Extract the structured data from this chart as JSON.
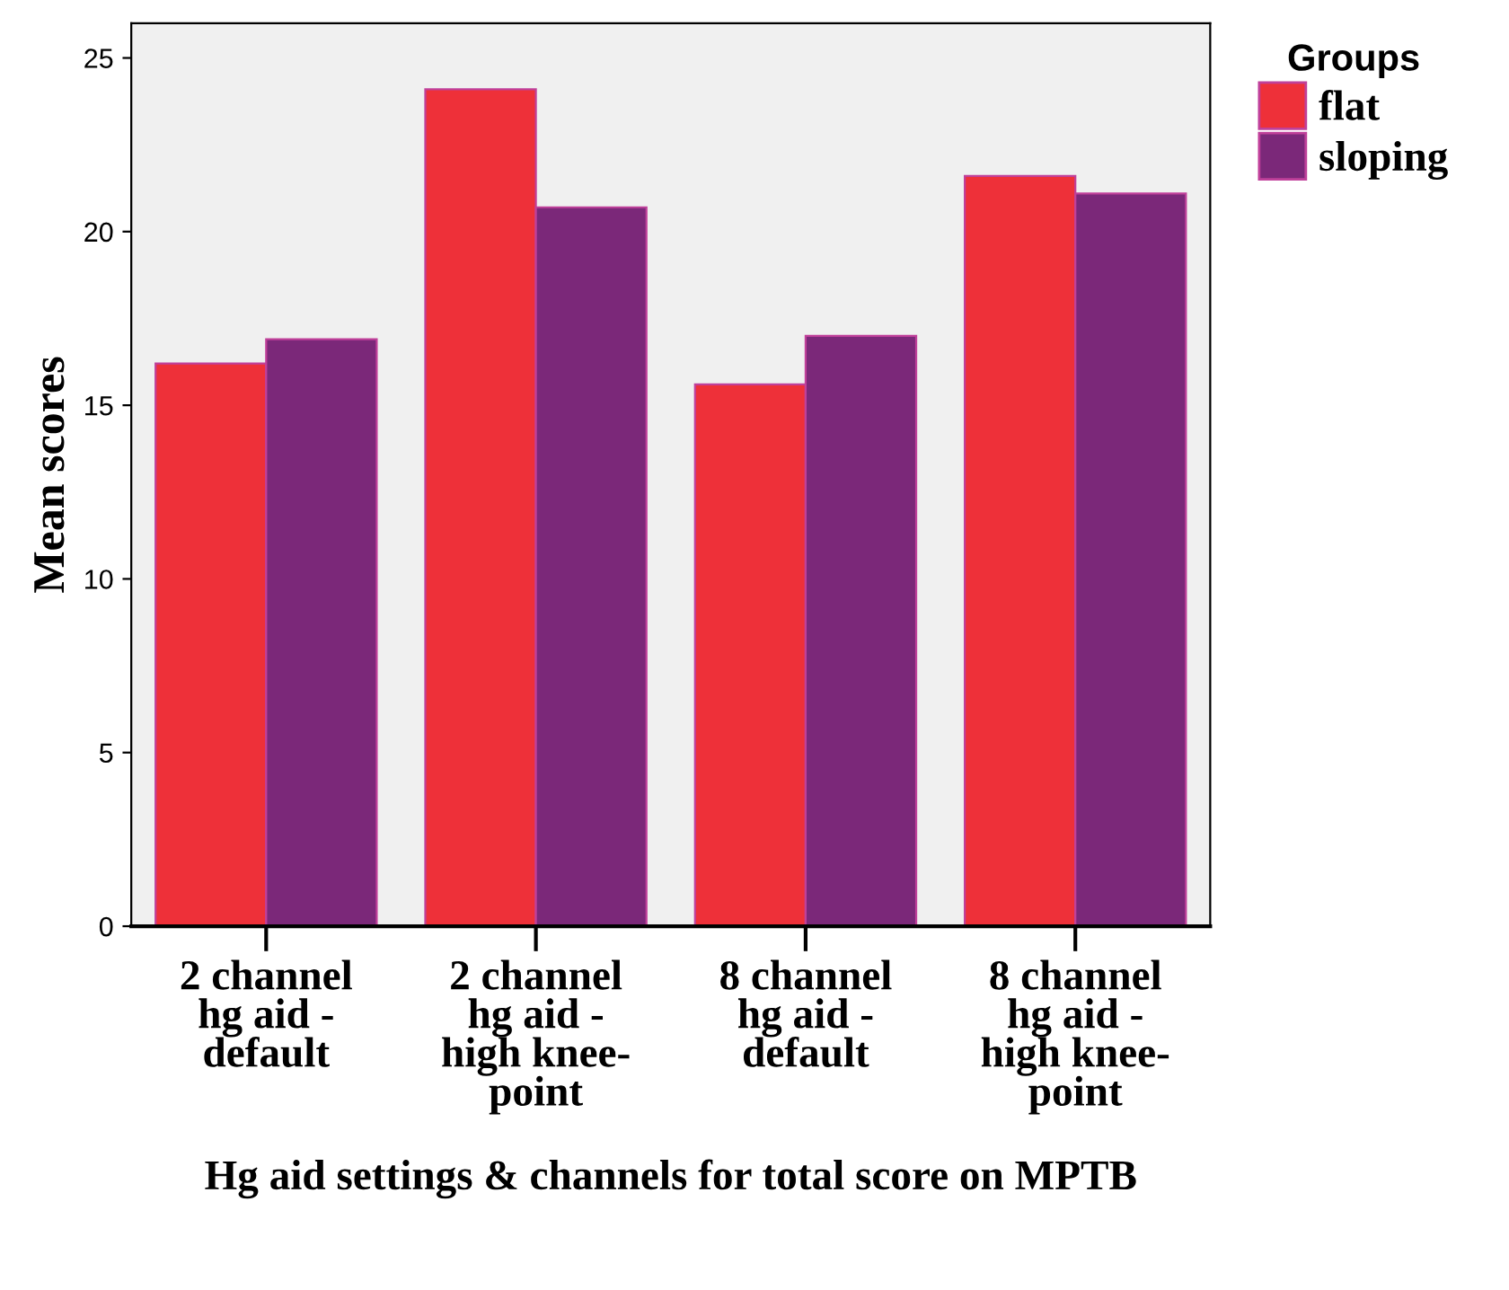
{
  "chart_data": {
    "type": "bar",
    "xlabel": "Hg aid settings & channels for total score on MPTB",
    "ylabel": "Mean scores",
    "legend_title": "Groups",
    "categories": [
      "2 channel\nhg aid -\ndefault",
      "2 channel\nhg aid -\nhigh knee-\npoint",
      "8 channel\nhg aid -\ndefault",
      "8 channel\nhg aid -\nhigh knee-\npoint"
    ],
    "series": [
      {
        "name": "flat",
        "color": "#ee3039",
        "values": [
          16.2,
          24.1,
          15.6,
          21.6
        ]
      },
      {
        "name": "sloping",
        "color": "#7b2879",
        "values": [
          16.9,
          20.7,
          17.0,
          21.1
        ]
      }
    ],
    "ylim": [
      0,
      26
    ],
    "yticks": [
      0,
      5,
      10,
      15,
      20,
      25
    ],
    "grid": false,
    "legend": "top right"
  }
}
